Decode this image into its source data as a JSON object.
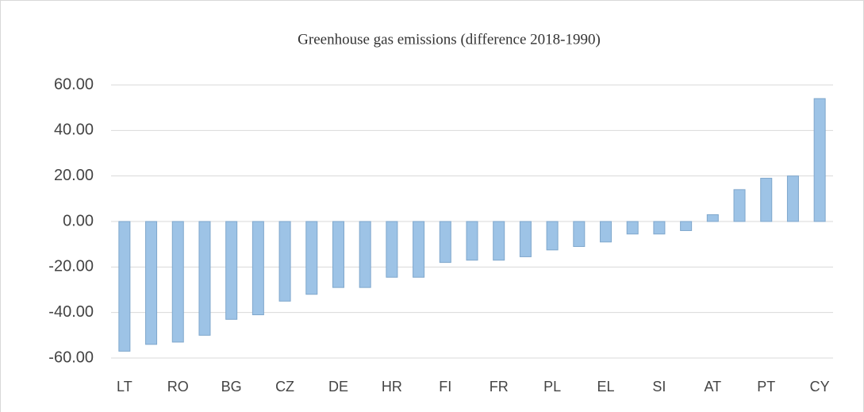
{
  "chart_data": {
    "type": "bar",
    "title": "Greenhouse gas emissions (difference 2018-1990)",
    "categories": [
      "LT",
      null,
      "RO",
      null,
      "BG",
      null,
      "CZ",
      null,
      "DE",
      null,
      "HR",
      null,
      "FI",
      null,
      "FR",
      null,
      "PL",
      null,
      "EL",
      null,
      "SI",
      null,
      "AT",
      null,
      "PT",
      null,
      "CY"
    ],
    "values": [
      -57,
      -54,
      -53,
      -50,
      -43,
      -41,
      -35,
      -32,
      -29,
      -29,
      -24.5,
      -24.5,
      -18,
      -17,
      -17,
      -15.5,
      -12.5,
      -11,
      -9,
      -5.5,
      -5.5,
      -4,
      3,
      14,
      19,
      20,
      54
    ],
    "color": "#9dc3e6",
    "ylim": [
      -60,
      60
    ],
    "yticks": [
      {
        "value": -60,
        "label": "-60.00"
      },
      {
        "value": -40,
        "label": "-40.00"
      },
      {
        "value": -20,
        "label": "-20.00"
      },
      {
        "value": 0,
        "label": "0.00"
      },
      {
        "value": 20,
        "label": "20.00"
      },
      {
        "value": 40,
        "label": "40.00"
      },
      {
        "value": 60,
        "label": "60.00"
      }
    ],
    "grid": true
  }
}
